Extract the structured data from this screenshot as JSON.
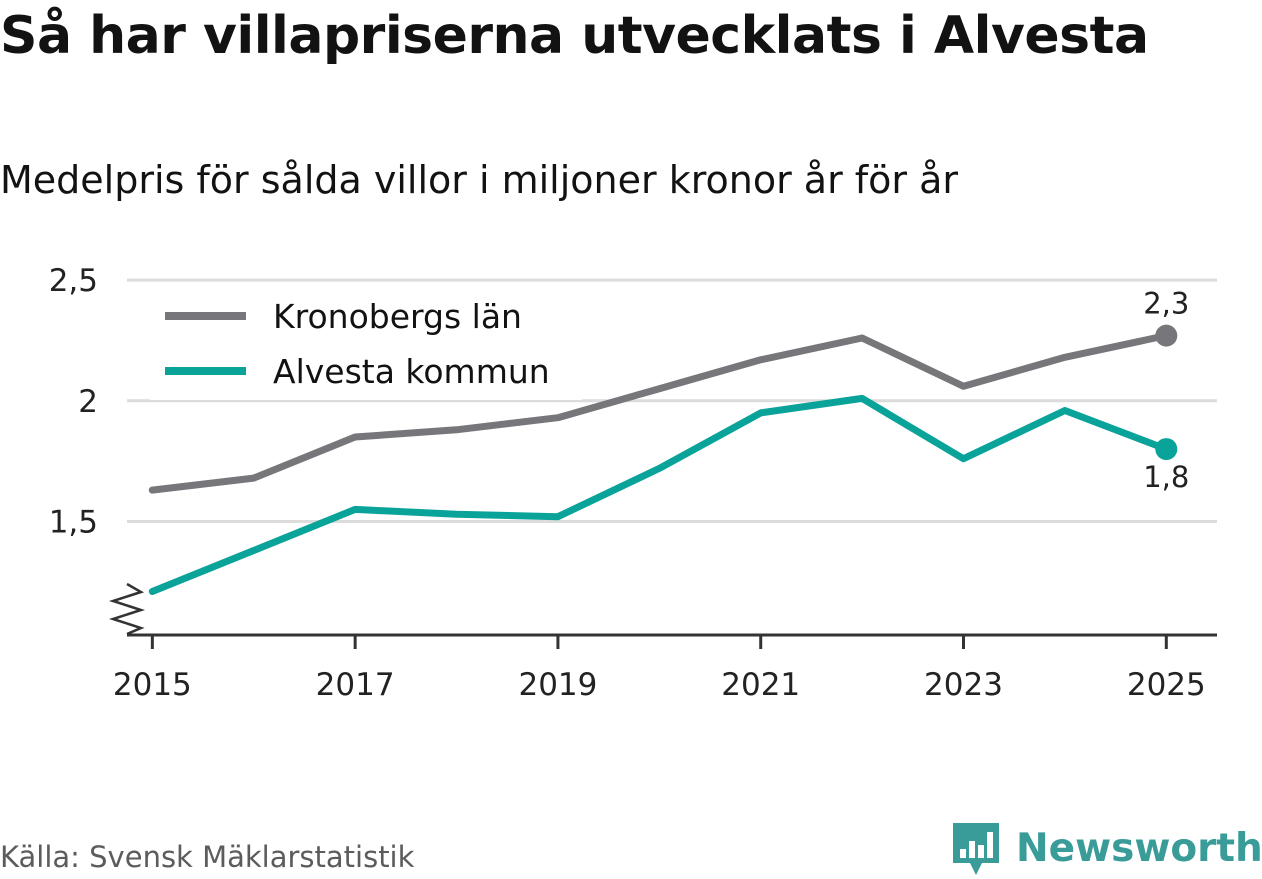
{
  "chart_data": {
    "type": "line",
    "title": "Så har villapriserna utvecklats i Alvesta",
    "subtitle": "Medelpris för sålda villor i miljoner kronor år för år",
    "x": [
      2015,
      2016,
      2017,
      2018,
      2019,
      2020,
      2021,
      2022,
      2023,
      2024,
      2025
    ],
    "series": [
      {
        "name": "Kronobergs län",
        "color": "#77767b",
        "values": [
          1.63,
          1.68,
          1.85,
          1.88,
          1.93,
          2.05,
          2.17,
          2.26,
          2.06,
          2.18,
          2.27
        ],
        "end_label": "2,3"
      },
      {
        "name": "Alvesta kommun",
        "color": "#0aa39a",
        "values": [
          1.21,
          1.38,
          1.55,
          1.53,
          1.52,
          1.72,
          1.95,
          2.01,
          1.76,
          1.96,
          1.8
        ],
        "end_label": "1,8"
      }
    ],
    "yticks": [
      {
        "value": 1.5,
        "label": "1,5"
      },
      {
        "value": 2,
        "label": "2"
      },
      {
        "value": 2.5,
        "label": "2,5"
      }
    ],
    "xticks": [
      {
        "value": 2015,
        "label": "2015"
      },
      {
        "value": 2017,
        "label": "2017"
      },
      {
        "value": 2019,
        "label": "2019"
      },
      {
        "value": 2021,
        "label": "2021"
      },
      {
        "value": 2023,
        "label": "2023"
      },
      {
        "value": 2025,
        "label": "2025"
      }
    ],
    "ylim": [
      1.03,
      2.55
    ],
    "xlim": [
      2014.75,
      2025.5
    ],
    "xlabel": "",
    "ylabel": "",
    "grid": true,
    "legend_position": "top-left",
    "y_axis_break": true
  },
  "footer": {
    "source": "Källa: Svensk Mäklarstatistik",
    "brand": "Newsworthy",
    "brand_icon": "bar-chart-speech-bubble-icon",
    "brand_color": "#3a9c98"
  }
}
